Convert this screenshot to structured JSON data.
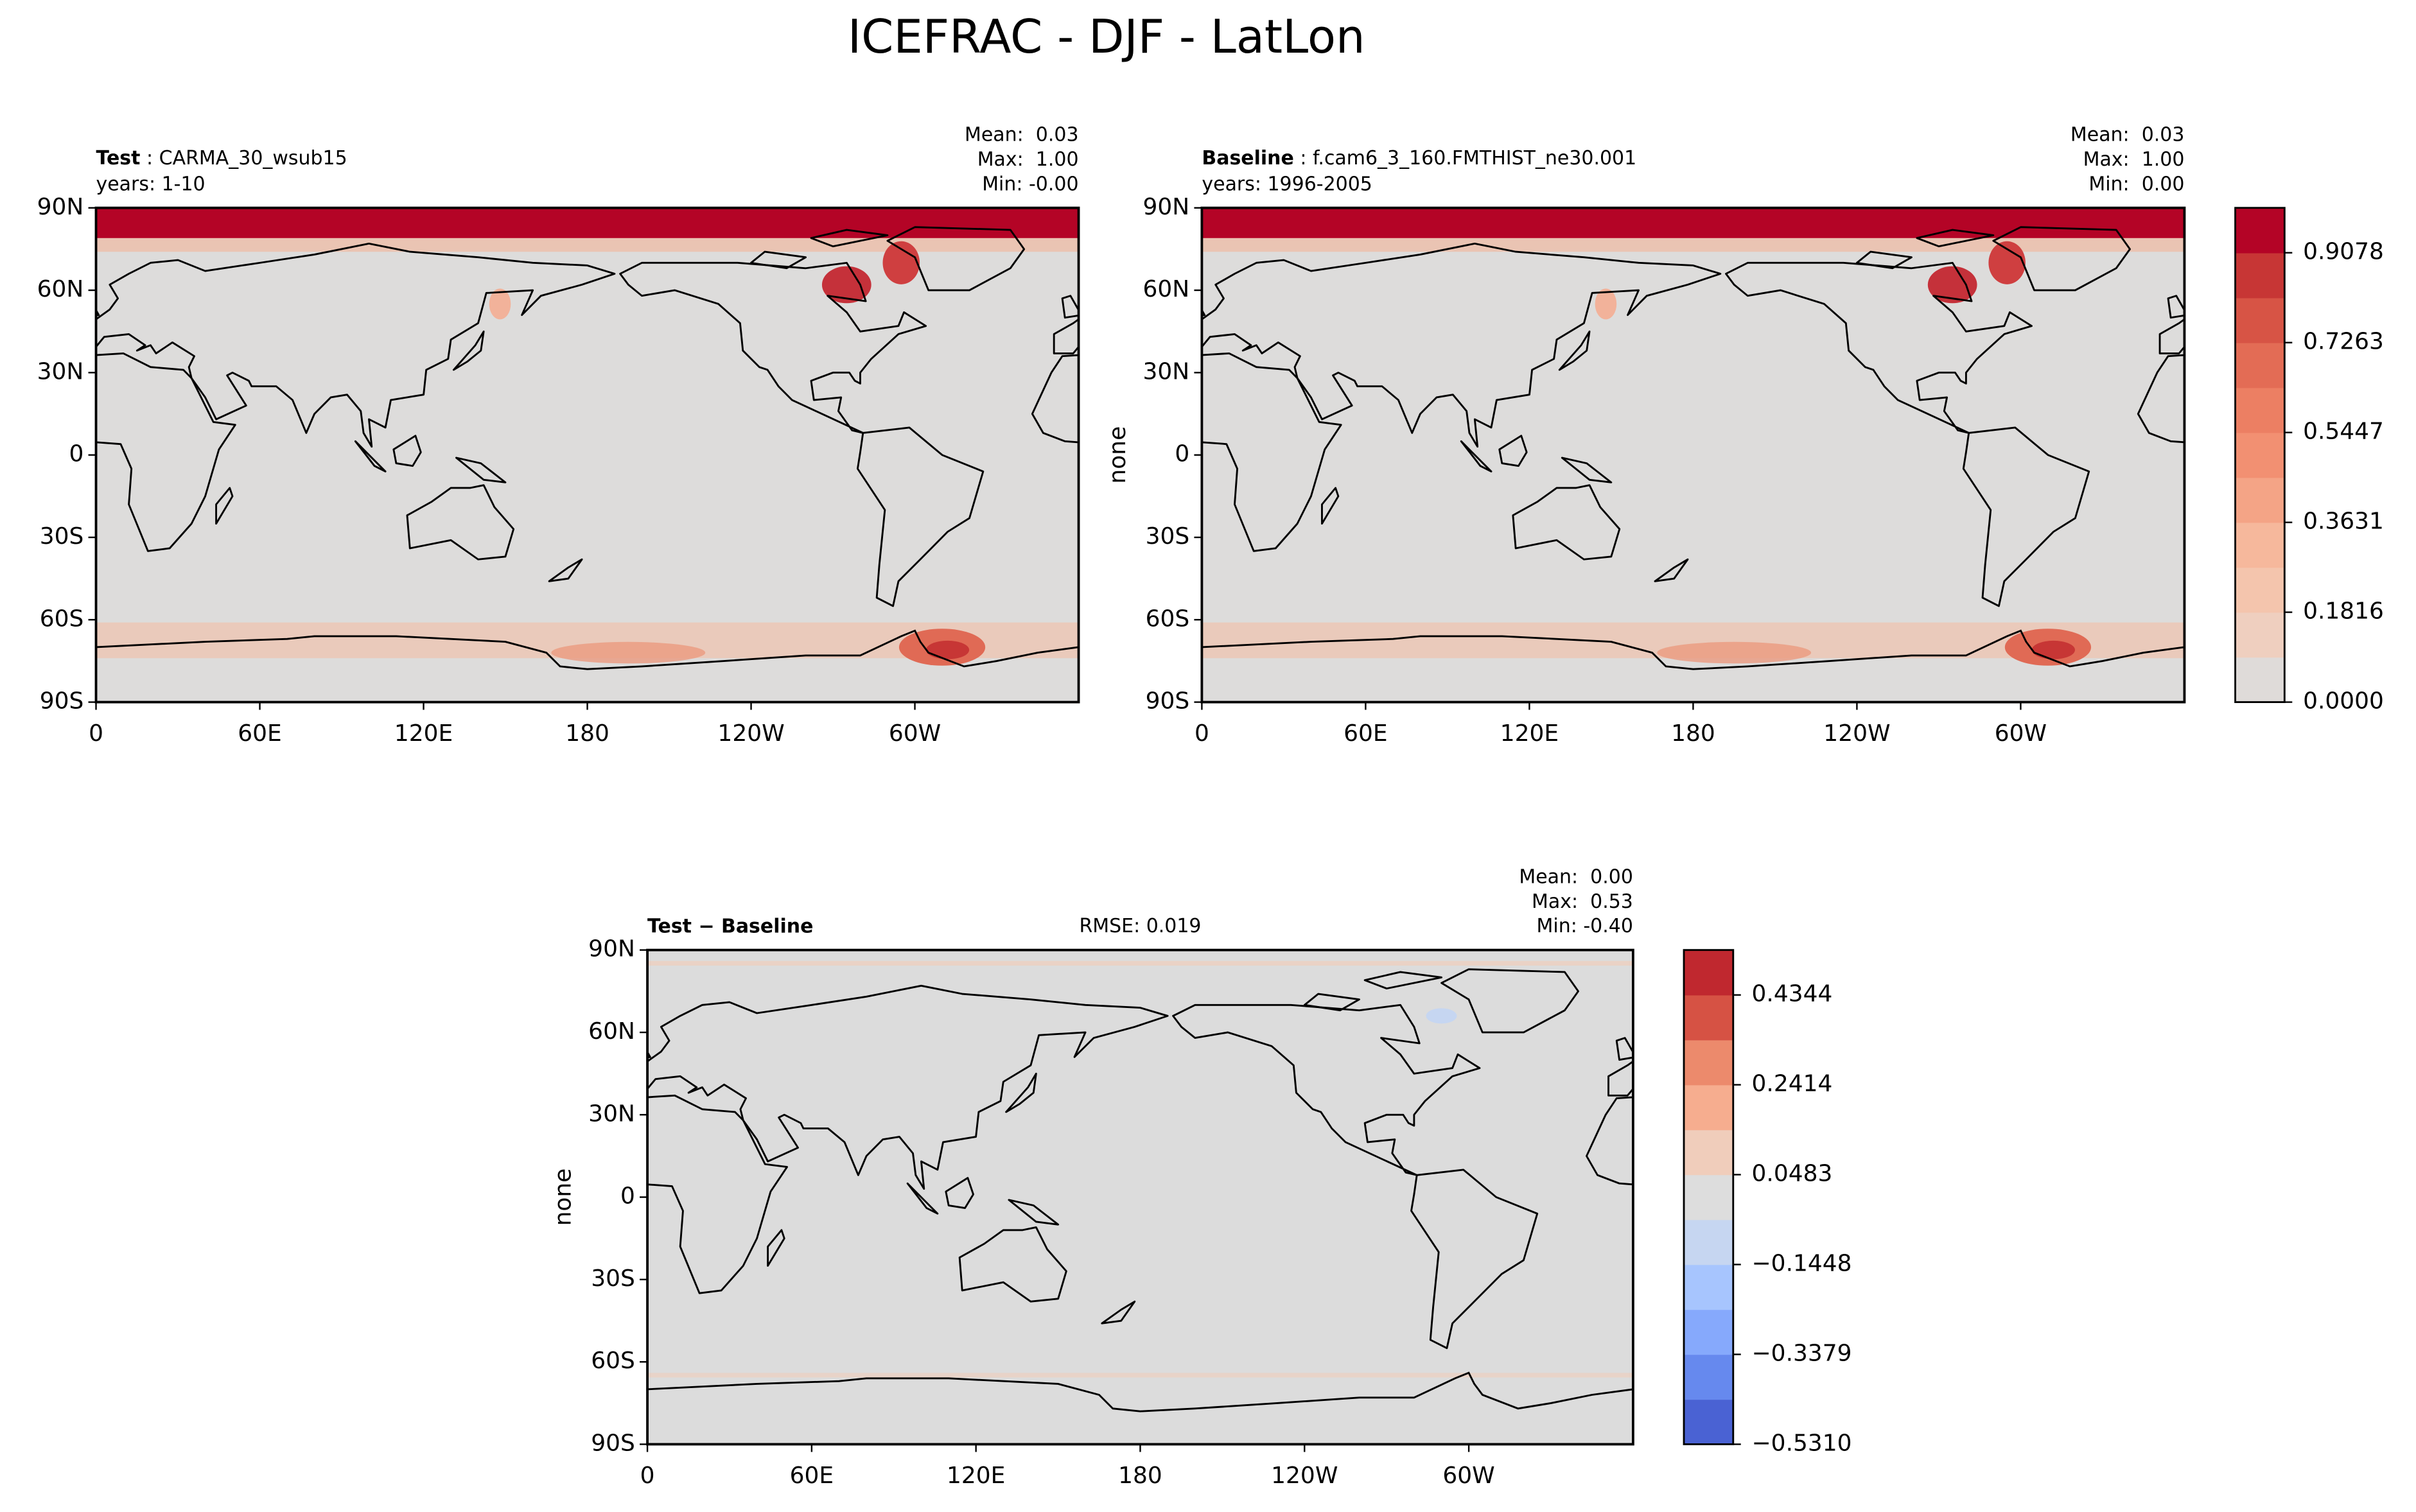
{
  "title": "ICEFRAC - DJF - LatLon",
  "panels": [
    {
      "heading_bold": "Test",
      "heading": ": CARMA_30_wsub15",
      "years": "years: 1-10",
      "stats": [
        "Mean:  0.03",
        "Max:  1.00",
        "Min: -0.00"
      ]
    },
    {
      "heading_bold": "Baseline",
      "heading": ": f.cam6_3_160.FMTHIST_ne30.001",
      "years": "years: 1996-2005",
      "stats": [
        "Mean:  0.03",
        "Max:  1.00",
        "Min:  0.00"
      ],
      "ylabel": "none"
    },
    {
      "heading_bold": "Test − Baseline",
      "rmse": "RMSE: 0.019",
      "stats": [
        "Mean:  0.00",
        "Max:  0.53",
        "Min: -0.40"
      ],
      "ylabel": "none"
    }
  ],
  "x_tick_labels": [
    "0",
    "60E",
    "120E",
    "180",
    "120W",
    "60W"
  ],
  "y_tick_labels": [
    "90N",
    "60N",
    "30N",
    "0",
    "30S",
    "60S",
    "90S"
  ],
  "colorbars": [
    {
      "lim": [
        0,
        0.9985
      ],
      "ticks": [
        {
          "value": 0,
          "label": "0.0000"
        },
        0.1816,
        0.3631,
        0.5447,
        0.7263,
        0.9078
      ],
      "colors": [
        "#dfdbd9",
        "#efcfbf",
        "#f4c5ad",
        "#f6b89c",
        "#f4a486",
        "#f29072",
        "#ec7f63",
        "#e36c55",
        "#d75445",
        "#c73635",
        "#b40426"
      ]
    },
    {
      "lim": [
        -0.531,
        0.531
      ],
      "ticks": [
        {
          "value": -0.531,
          "label": "−0.5310"
        },
        {
          "value": -0.3379,
          "label": "−0.3379"
        },
        {
          "value": -0.1448,
          "label": "−0.1448"
        },
        0.0483,
        0.2414,
        0.4344
      ],
      "colors": [
        "#4a62d3",
        "#6689ee",
        "#86a9fc",
        "#a7c5fe",
        "#c6d6f1",
        "#dddddd",
        "#f0cdbb",
        "#f6ad8f",
        "#ec8a6c",
        "#d65244",
        "#c0282f"
      ]
    }
  ]
}
